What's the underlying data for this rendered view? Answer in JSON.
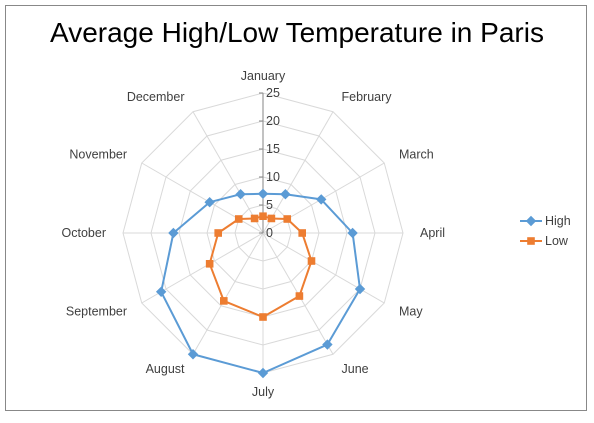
{
  "chart_data": {
    "type": "radar",
    "title": "Average High/Low Temperature in Paris",
    "categories": [
      "January",
      "February",
      "March",
      "April",
      "May",
      "June",
      "July",
      "August",
      "September",
      "October",
      "November",
      "December"
    ],
    "series": [
      {
        "name": "High",
        "values": [
          7,
          8,
          12,
          16,
          20,
          23,
          25,
          25,
          21,
          16,
          11,
          8
        ],
        "color": "#5B9BD5",
        "marker": "diamond"
      },
      {
        "name": "Low",
        "values": [
          3,
          3,
          5,
          7,
          10,
          13,
          15,
          14,
          11,
          8,
          5,
          3
        ],
        "color": "#ED7D31",
        "marker": "square"
      }
    ],
    "ticks": [
      0,
      5,
      10,
      15,
      20,
      25
    ],
    "rlim": [
      0,
      25
    ],
    "grid": true,
    "legend": "right"
  }
}
